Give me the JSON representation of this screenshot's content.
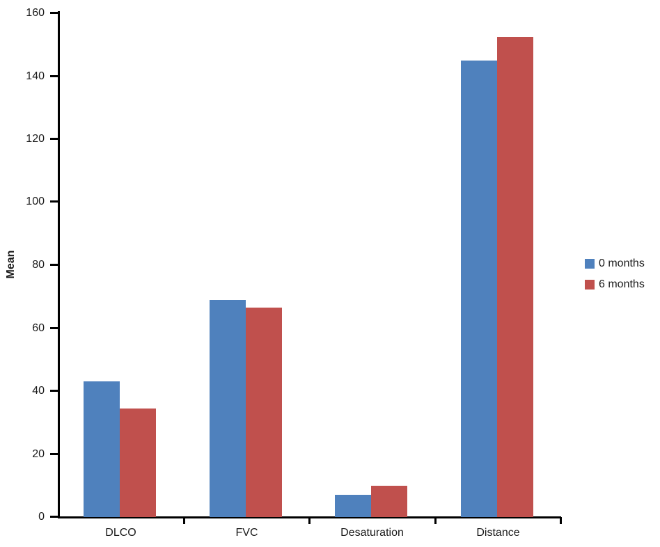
{
  "chart_data": {
    "type": "bar",
    "title": "",
    "categories": [
      "DLCO",
      "FVC",
      "Desaturation",
      "Distance"
    ],
    "series": [
      {
        "name": "0 months",
        "color": "#4F81BD",
        "values": [
          43,
          69,
          7,
          145
        ]
      },
      {
        "name": "6 months",
        "color": "#C0504D",
        "values": [
          34.5,
          66.5,
          10,
          152.5
        ]
      }
    ],
    "xlabel": "",
    "ylabel": "Mean",
    "ylim": [
      0,
      160
    ],
    "yticks": [
      0,
      20,
      40,
      60,
      80,
      100,
      120,
      140,
      160
    ],
    "grid": false,
    "legend_position": "right",
    "background_color": "#ffffff",
    "axis_color": "#000000",
    "text_color": "#1a1a1a"
  }
}
